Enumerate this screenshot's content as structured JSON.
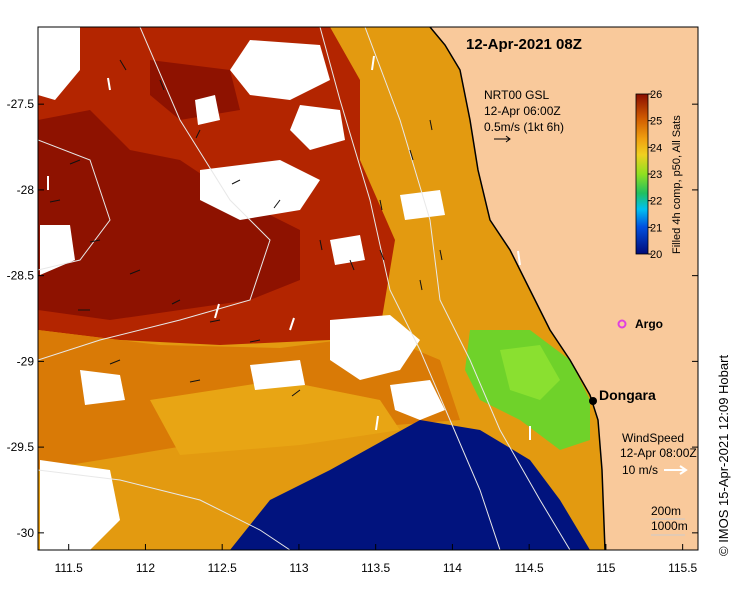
{
  "title": "12-Apr-2021 08Z",
  "currents": {
    "line1": "NRT00 GSL",
    "line2": "12-Apr 06:00Z",
    "line3": "0.5m/s (1kt 6h)"
  },
  "wind": {
    "line1": "WindSpeed",
    "line2": "12-Apr 08:00Z",
    "line3": "10 m/s"
  },
  "depth_legend": {
    "line1": "200m",
    "line2": "1000m"
  },
  "places": {
    "dongara": "Dongara",
    "argo": "Argo"
  },
  "colorbar": {
    "label": "Filled 4h comp, p50, All Sats",
    "min": 20,
    "max": 26,
    "ticks": [
      "20",
      "21",
      "22",
      "23",
      "24",
      "25",
      "26"
    ]
  },
  "credit": "© IMOS 15-Apr-2021 12:09 Hobart",
  "axes": {
    "x_range": [
      111.3,
      115.6
    ],
    "y_range": [
      -30.1,
      -27.05
    ],
    "x_ticks": [
      "111.5",
      "112",
      "112.5",
      "113",
      "113.5",
      "114",
      "114.5",
      "115",
      "115.5"
    ],
    "x_values": [
      111.5,
      112,
      112.5,
      113,
      113.5,
      114,
      114.5,
      115,
      115.5
    ],
    "y_ticks": [
      "-27.5",
      "-28",
      "-28.5",
      "-29",
      "-29.5",
      "-30"
    ],
    "y_values": [
      -27.5,
      -28,
      -28.5,
      -29,
      -29.5,
      -30
    ]
  },
  "colors": {
    "land": "#f9c99b",
    "warm": "#b02000",
    "hot": "#8a0d00",
    "orange": "#d97a06",
    "mid": "#e9a012",
    "green": "#66d02a",
    "cool": "#01137e",
    "cloud": "#ffffff",
    "argo": "#e040e0"
  }
}
